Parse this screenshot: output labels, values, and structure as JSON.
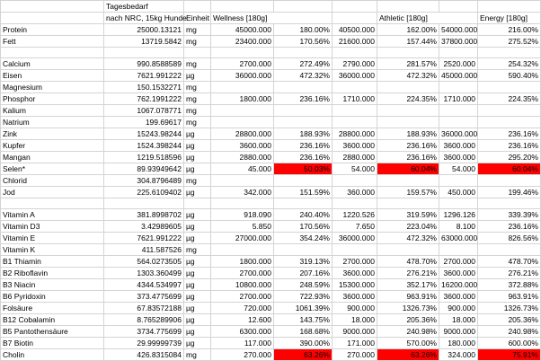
{
  "header": {
    "col_tagesbedarf": "Tagesbedarf",
    "col_nrc": "nach NRC, 15kg Hunde",
    "col_einheit": "Einheit",
    "col_wellness": "Wellness [180g]",
    "col_athletic": "Athletic [180g]",
    "col_energy": "Energy [180g]"
  },
  "rows": [
    {
      "name": "Protein",
      "req": "25000.13121",
      "unit": "mg",
      "w": "45000.000",
      "wp": "180.00%",
      "a": "40500.000",
      "ap": "162.00%",
      "e": "54000.000",
      "ep": "216.00%"
    },
    {
      "name": "Fett",
      "req": "13719.5842",
      "unit": "mg",
      "w": "23400.000",
      "wp": "170.56%",
      "a": "21600.000",
      "ap": "157.44%",
      "e": "37800.000",
      "ep": "275.52%"
    },
    {
      "name": "",
      "req": "",
      "unit": "",
      "w": "",
      "wp": "",
      "a": "",
      "ap": "",
      "e": "",
      "ep": ""
    },
    {
      "name": "Calcium",
      "req": "990.8588589",
      "unit": "mg",
      "w": "2700.000",
      "wp": "272.49%",
      "a": "2790.000",
      "ap": "281.57%",
      "e": "2520.000",
      "ep": "254.32%"
    },
    {
      "name": "Eisen",
      "req": "7621.991222",
      "unit": "µg",
      "w": "36000.000",
      "wp": "472.32%",
      "a": "36000.000",
      "ap": "472.32%",
      "e": "45000.000",
      "ep": "590.40%"
    },
    {
      "name": "Magnesium",
      "req": "150.1532271",
      "unit": "mg",
      "w": "",
      "wp": "",
      "a": "",
      "ap": "",
      "e": "",
      "ep": ""
    },
    {
      "name": "Phosphor",
      "req": "762.1991222",
      "unit": "mg",
      "w": "1800.000",
      "wp": "236.16%",
      "a": "1710.000",
      "ap": "224.35%",
      "e": "1710.000",
      "ep": "224.35%"
    },
    {
      "name": "Kalium",
      "req": "1067.078771",
      "unit": "mg",
      "w": "",
      "wp": "",
      "a": "",
      "ap": "",
      "e": "",
      "ep": ""
    },
    {
      "name": "Natrium",
      "req": "199.69617",
      "unit": "mg",
      "w": "",
      "wp": "",
      "a": "",
      "ap": "",
      "e": "",
      "ep": ""
    },
    {
      "name": "Zink",
      "req": "15243.98244",
      "unit": "µg",
      "w": "28800.000",
      "wp": "188.93%",
      "a": "28800.000",
      "ap": "188.93%",
      "e": "36000.000",
      "ep": "236.16%"
    },
    {
      "name": "Kupfer",
      "req": "1524.398244",
      "unit": "µg",
      "w": "3600.000",
      "wp": "236.16%",
      "a": "3600.000",
      "ap": "236.16%",
      "e": "3600.000",
      "ep": "236.16%"
    },
    {
      "name": "Mangan",
      "req": "1219.518596",
      "unit": "µg",
      "w": "2880.000",
      "wp": "236.16%",
      "a": "2880.000",
      "ap": "236.16%",
      "e": "3600.000",
      "ep": "295.20%"
    },
    {
      "name": "Selen*",
      "req": "89.93949642",
      "unit": "µg",
      "w": "45.000",
      "wp": "50.03%",
      "a": "54.000",
      "ap": "60.04%",
      "e": "54.000",
      "ep": "60.04%",
      "red": true
    },
    {
      "name": "Chlorid",
      "req": "304.8796489",
      "unit": "mg",
      "w": "",
      "wp": "",
      "a": "",
      "ap": "",
      "e": "",
      "ep": ""
    },
    {
      "name": "Jod",
      "req": "225.6109402",
      "unit": "µg",
      "w": "342.000",
      "wp": "151.59%",
      "a": "360.000",
      "ap": "159.57%",
      "e": "450.000",
      "ep": "199.46%"
    },
    {
      "name": "",
      "req": "",
      "unit": "",
      "w": "",
      "wp": "",
      "a": "",
      "ap": "",
      "e": "",
      "ep": ""
    },
    {
      "name": "Vitamin A",
      "req": "381.8998702",
      "unit": "µg",
      "w": "918.090",
      "wp": "240.40%",
      "a": "1220.526",
      "ap": "319.59%",
      "e": "1296.126",
      "ep": "339.39%"
    },
    {
      "name": "Vitamin D3",
      "req": "3.42989605",
      "unit": "µg",
      "w": "5.850",
      "wp": "170.56%",
      "a": "7.650",
      "ap": "223.04%",
      "e": "8.100",
      "ep": "236.16%"
    },
    {
      "name": "Vitamin E",
      "req": "7621.991222",
      "unit": "µg",
      "w": "27000.000",
      "wp": "354.24%",
      "a": "36000.000",
      "ap": "472.32%",
      "e": "63000.000",
      "ep": "826.56%"
    },
    {
      "name": "Vitamin K",
      "req": "411.587526",
      "unit": "mg",
      "w": "",
      "wp": "",
      "a": "",
      "ap": "",
      "e": "",
      "ep": ""
    },
    {
      "name": "B1 Thiamin",
      "req": "564.0273505",
      "unit": "µg",
      "w": "1800.000",
      "wp": "319.13%",
      "a": "2700.000",
      "ap": "478.70%",
      "e": "2700.000",
      "ep": "478.70%"
    },
    {
      "name": "B2 Riboflavin",
      "req": "1303.360499",
      "unit": "µg",
      "w": "2700.000",
      "wp": "207.16%",
      "a": "3600.000",
      "ap": "276.21%",
      "e": "3600.000",
      "ep": "276.21%"
    },
    {
      "name": "B3 Niacin",
      "req": "4344.534997",
      "unit": "µg",
      "w": "10800.000",
      "wp": "248.59%",
      "a": "15300.000",
      "ap": "352.17%",
      "e": "16200.000",
      "ep": "372.88%"
    },
    {
      "name": "B6 Pyridoxin",
      "req": "373.4775699",
      "unit": "µg",
      "w": "2700.000",
      "wp": "722.93%",
      "a": "3600.000",
      "ap": "963.91%",
      "e": "3600.000",
      "ep": "963.91%"
    },
    {
      "name": "Folsäure",
      "req": "67.83572188",
      "unit": "µg",
      "w": "720.000",
      "wp": "1061.39%",
      "a": "900.000",
      "ap": "1326.73%",
      "e": "900.000",
      "ep": "1326.73%"
    },
    {
      "name": "B12 Cobalamin",
      "req": "8.765289906",
      "unit": "µg",
      "w": "12.600",
      "wp": "143.75%",
      "a": "18.000",
      "ap": "205.36%",
      "e": "18.000",
      "ep": "205.36%"
    },
    {
      "name": "B5 Pantothensäure",
      "req": "3734.775699",
      "unit": "µg",
      "w": "6300.000",
      "wp": "168.68%",
      "a": "9000.000",
      "ap": "240.98%",
      "e": "9000.000",
      "ep": "240.98%"
    },
    {
      "name": "B7 Biotin",
      "req": "29.99999739",
      "unit": "µg",
      "w": "117.000",
      "wp": "390.00%",
      "a": "171.000",
      "ap": "570.00%",
      "e": "180.000",
      "ep": "600.00%"
    },
    {
      "name": "Cholin",
      "req": "426.8315084",
      "unit": "mg",
      "w": "270.000",
      "wp": "63.26%",
      "a": "270.000",
      "ap": "63.26%",
      "e": "324.000",
      "ep": "75.91%",
      "red": true
    }
  ]
}
